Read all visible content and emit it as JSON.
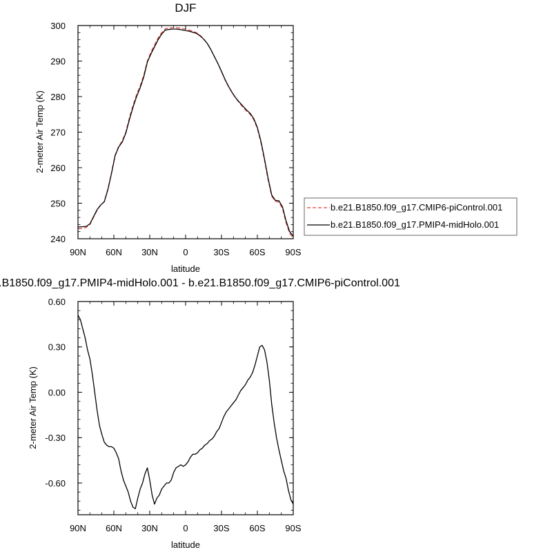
{
  "chart_data": [
    {
      "type": "line",
      "title": "DJF",
      "xlabel": "latitude",
      "ylabel": "2-meter Air Temp (K)",
      "x_direction": "north-to-south",
      "xlim": [
        90,
        -90
      ],
      "ylim": [
        240,
        300
      ],
      "x_ticks": [
        90,
        60,
        30,
        0,
        -30,
        -60,
        -90
      ],
      "x_tick_labels": [
        "90N",
        "60N",
        "30N",
        "0",
        "30S",
        "60S",
        "90S"
      ],
      "y_ticks": [
        240,
        250,
        260,
        270,
        280,
        290,
        300
      ],
      "y_tick_labels": [
        "240",
        "250",
        "260",
        "270",
        "280",
        "290",
        "300"
      ],
      "legend_placement": "right",
      "series": [
        {
          "name": "b.e21.B1850.f09_g17.CMIP6-piControl.001",
          "color": "#e0403a",
          "dash": "dashed",
          "x": [
            90,
            86,
            83,
            80,
            77,
            74,
            71,
            68,
            65,
            62,
            59,
            56,
            53,
            50,
            47,
            44,
            41,
            38,
            35,
            32,
            29,
            26,
            23,
            20,
            17,
            14,
            11,
            8,
            5,
            2,
            0,
            -3,
            -6,
            -9,
            -12,
            -15,
            -18,
            -21,
            -24,
            -27,
            -30,
            -33,
            -36,
            -39,
            -42,
            -45,
            -48,
            -51,
            -54,
            -57,
            -60,
            -63,
            -66,
            -69,
            -72,
            -75,
            -78,
            -81,
            -84,
            -87,
            -90
          ],
          "y": [
            242.8,
            242.9,
            243.2,
            244.0,
            246.0,
            248.0,
            249.5,
            250.5,
            254.0,
            258.5,
            263.5,
            266.0,
            267.5,
            270.0,
            274.0,
            277.5,
            280.5,
            283.0,
            286.0,
            290.0,
            292.5,
            294.5,
            296.5,
            298.0,
            299.1,
            299.3,
            299.4,
            299.4,
            299.3,
            299.1,
            299.0,
            298.7,
            298.4,
            298.0,
            297.3,
            296.3,
            295.0,
            293.3,
            291.3,
            289.3,
            287.0,
            284.7,
            282.7,
            281.0,
            279.5,
            278.2,
            277.0,
            275.9,
            275.0,
            273.5,
            271.0,
            267.0,
            262.0,
            256.5,
            252.0,
            250.5,
            250.3,
            248.5,
            244.5,
            241.5,
            240.2
          ]
        },
        {
          "name": "b.e21.B1850.f09_g17.PMIP4-midHolo.001",
          "color": "#000000",
          "dash": "solid",
          "x": [
            90,
            86,
            83,
            80,
            77,
            74,
            71,
            68,
            65,
            62,
            59,
            56,
            53,
            50,
            47,
            44,
            41,
            38,
            35,
            32,
            29,
            26,
            23,
            20,
            17,
            14,
            11,
            8,
            5,
            2,
            0,
            -3,
            -6,
            -9,
            -12,
            -15,
            -18,
            -21,
            -24,
            -27,
            -30,
            -33,
            -36,
            -39,
            -42,
            -45,
            -48,
            -51,
            -54,
            -57,
            -60,
            -63,
            -66,
            -69,
            -72,
            -75,
            -78,
            -81,
            -84,
            -87,
            -90
          ],
          "y": [
            243.3,
            243.4,
            243.5,
            244.2,
            246.2,
            248.2,
            249.5,
            250.4,
            253.8,
            258.3,
            263.3,
            265.8,
            267.2,
            269.7,
            273.5,
            277.0,
            280.0,
            282.5,
            285.5,
            289.7,
            292.0,
            294.0,
            296.0,
            297.6,
            298.7,
            298.9,
            299.0,
            299.0,
            298.9,
            298.7,
            298.6,
            298.4,
            298.1,
            297.8,
            297.1,
            296.2,
            295.0,
            293.3,
            291.3,
            289.3,
            287.1,
            284.8,
            282.8,
            281.1,
            279.6,
            278.4,
            277.3,
            276.2,
            275.3,
            273.8,
            271.3,
            267.4,
            262.4,
            257.0,
            252.3,
            250.8,
            250.7,
            249.0,
            245.0,
            242.0,
            240.7
          ]
        }
      ]
    },
    {
      "type": "line",
      "title": "b.e21.B1850.f09_g17.PMIP4-midHolo.001 - b.e21.B1850.f09_g17.CMIP6-piControl.001",
      "xlabel": "latitude",
      "ylabel": "2-meter Air Temp (K)",
      "x_direction": "north-to-south",
      "xlim": [
        90,
        -90
      ],
      "ylim": [
        -0.81,
        0.6
      ],
      "x_ticks": [
        90,
        60,
        30,
        0,
        -30,
        -60,
        -90
      ],
      "x_tick_labels": [
        "90N",
        "60N",
        "30N",
        "0",
        "30S",
        "60S",
        "90S"
      ],
      "y_ticks": [
        0.6,
        0.3,
        0.0,
        -0.3,
        -0.6
      ],
      "y_tick_labels": [
        "0.60",
        "0.30",
        "0.00",
        "-0.30",
        "-0.60"
      ],
      "series": [
        {
          "color": "#000000",
          "dash": "solid",
          "x": [
            90,
            88,
            86,
            84,
            82,
            80,
            78,
            76,
            74,
            72,
            70,
            68,
            66,
            64,
            62,
            60,
            58,
            56,
            54,
            52,
            50,
            48,
            46,
            44,
            42,
            40,
            38,
            36,
            34,
            32,
            30,
            28,
            26,
            24,
            22,
            20,
            18,
            16,
            14,
            12,
            10,
            8,
            6,
            4,
            2,
            0,
            -2,
            -4,
            -6,
            -8,
            -10,
            -12,
            -14,
            -16,
            -18,
            -20,
            -22,
            -24,
            -26,
            -28,
            -30,
            -32,
            -34,
            -36,
            -38,
            -40,
            -42,
            -44,
            -46,
            -48,
            -50,
            -52,
            -54,
            -56,
            -58,
            -60,
            -62,
            -64,
            -66,
            -68,
            -70,
            -72,
            -74,
            -76,
            -78,
            -80,
            -82,
            -84,
            -86,
            -88,
            -90
          ],
          "y": [
            0.51,
            0.48,
            0.42,
            0.36,
            0.28,
            0.22,
            0.12,
            0.0,
            -0.12,
            -0.22,
            -0.28,
            -0.33,
            -0.35,
            -0.36,
            -0.36,
            -0.37,
            -0.4,
            -0.44,
            -0.52,
            -0.58,
            -0.62,
            -0.66,
            -0.72,
            -0.76,
            -0.77,
            -0.7,
            -0.64,
            -0.6,
            -0.54,
            -0.5,
            -0.58,
            -0.68,
            -0.74,
            -0.7,
            -0.68,
            -0.64,
            -0.62,
            -0.6,
            -0.6,
            -0.58,
            -0.53,
            -0.5,
            -0.49,
            -0.48,
            -0.49,
            -0.48,
            -0.46,
            -0.43,
            -0.41,
            -0.41,
            -0.4,
            -0.38,
            -0.37,
            -0.35,
            -0.34,
            -0.32,
            -0.31,
            -0.29,
            -0.26,
            -0.24,
            -0.2,
            -0.16,
            -0.13,
            -0.11,
            -0.09,
            -0.07,
            -0.05,
            -0.02,
            0.01,
            0.03,
            0.05,
            0.08,
            0.1,
            0.13,
            0.18,
            0.24,
            0.3,
            0.31,
            0.28,
            0.2,
            0.08,
            -0.08,
            -0.2,
            -0.3,
            -0.38,
            -0.45,
            -0.52,
            -0.57,
            -0.65,
            -0.71,
            -0.74
          ]
        }
      ]
    }
  ]
}
